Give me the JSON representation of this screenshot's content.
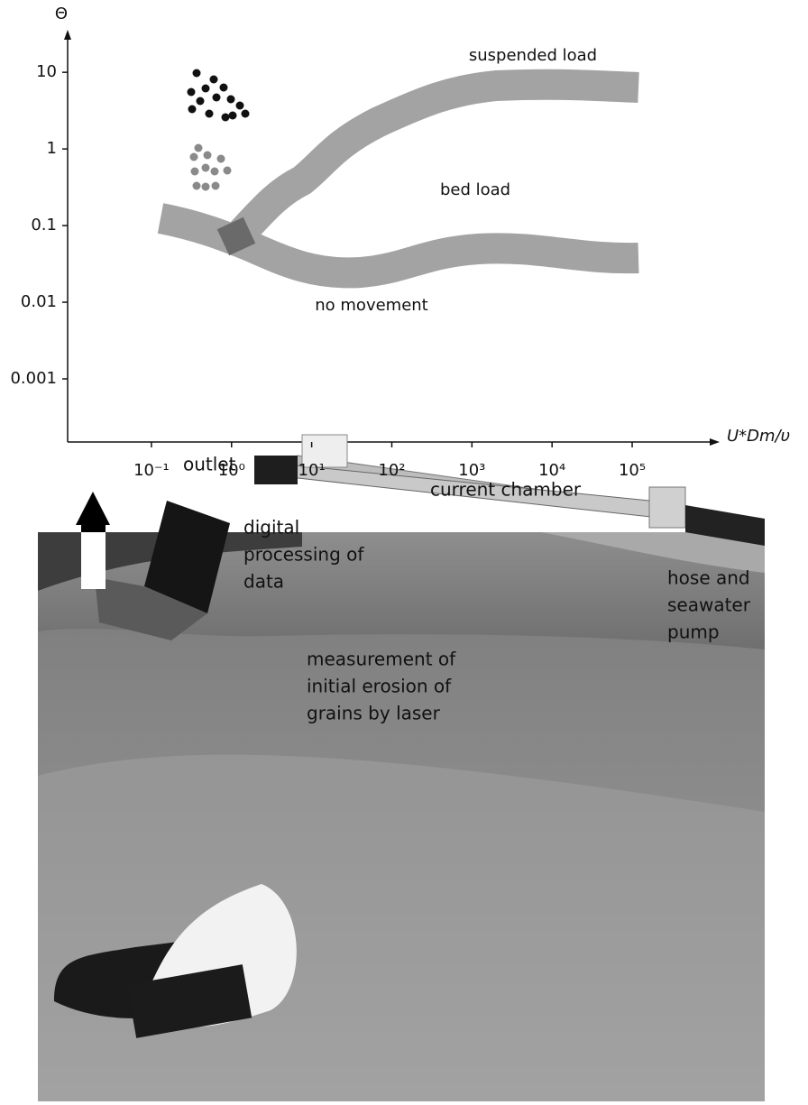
{
  "chart_data": {
    "type": "regime-diagram",
    "y_label": "Θ",
    "x_label": "U*Dm/υ",
    "ylog": true,
    "xlog": true,
    "ylim": [
      0.00015,
      34
    ],
    "yticks": [
      10,
      1,
      0.1,
      0.01,
      0.001
    ],
    "xlim": [
      0.009,
      1300000
    ],
    "xticks": [
      {
        "value": 0.1,
        "label": "10⁻¹"
      },
      {
        "value": 1,
        "label": "10⁰"
      },
      {
        "value": 10,
        "label": "10¹"
      },
      {
        "value": 100,
        "label": "10²"
      },
      {
        "value": 1000,
        "label": "10³"
      },
      {
        "value": 10000,
        "label": "10⁴"
      },
      {
        "value": 100000,
        "label": "10⁵"
      }
    ],
    "annotations": [
      "suspended load",
      "bed load",
      "no movement"
    ]
  },
  "photo": {
    "labels": [
      {
        "lines": [
          "measurement of",
          "initial erosion of",
          "grains by laser"
        ]
      },
      {
        "lines": [
          "outlet"
        ]
      },
      {
        "lines": [
          "current chamber"
        ]
      },
      {
        "lines": [
          "digital",
          "processing of",
          "data"
        ]
      },
      {
        "lines": [
          "hose and",
          "seawater",
          "pump"
        ]
      }
    ]
  }
}
